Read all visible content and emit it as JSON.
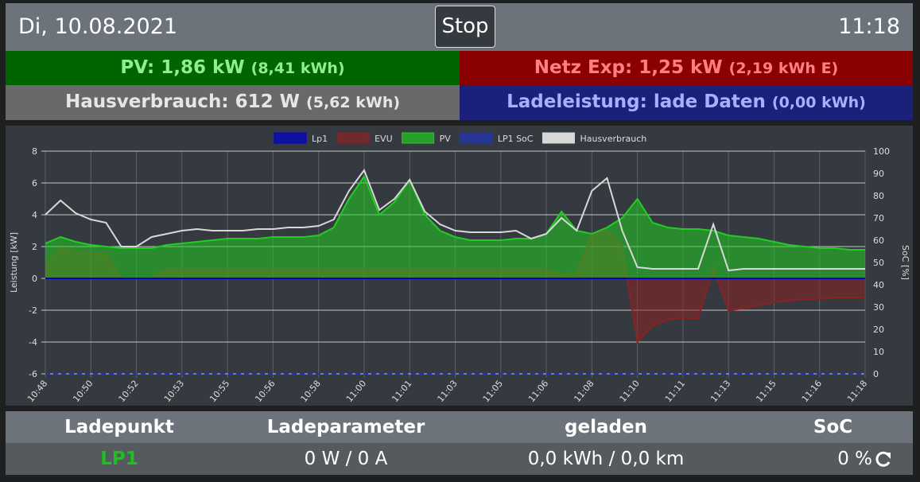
{
  "header": {
    "date": "Di, 10.08.2021",
    "button": "Stop",
    "time": "11:18"
  },
  "status": {
    "pv": {
      "label": "PV: 1,86 kW",
      "detail": "(8,41 kWh)"
    },
    "grid": {
      "label": "Netz Exp: 1,25 kW",
      "detail": "(2,19 kWh E)"
    },
    "house": {
      "label": "Hausverbrauch: 612 W",
      "detail": "(5,62 kWh)"
    },
    "charge": {
      "label": "Ladeleistung: lade Daten",
      "detail": "(0,00 kWh)"
    }
  },
  "chart_data": {
    "type": "line",
    "ylabel": "Leistung [kW]",
    "y2label": "SoC [%]",
    "legend": "top",
    "grid": true,
    "ylim": [
      -6,
      8
    ],
    "yticks": [
      -6,
      -4,
      -2,
      0,
      2,
      4,
      6,
      8
    ],
    "y2lim": [
      0,
      100
    ],
    "y2ticks": [
      0,
      10,
      20,
      30,
      40,
      50,
      60,
      70,
      80,
      90,
      100
    ],
    "categories": [
      "10:48",
      null,
      null,
      "10:50",
      null,
      null,
      "10:52",
      null,
      null,
      "10:53",
      null,
      null,
      "10:55",
      null,
      null,
      "10:56",
      null,
      null,
      "10:58",
      null,
      null,
      "11:00",
      null,
      null,
      "11:01",
      null,
      null,
      "11:03",
      null,
      null,
      "11:05",
      null,
      null,
      "11:06",
      null,
      null,
      "11:08",
      null,
      null,
      "11:10",
      null,
      null,
      "11:11",
      null,
      null,
      "11:13",
      null,
      null,
      "11:15",
      null,
      null,
      "11:16",
      null,
      null,
      "11:18"
    ],
    "series": [
      {
        "name": "Lp1",
        "color": "#0000cc",
        "fill": true,
        "values": [
          0,
          0,
          0,
          0,
          0,
          0,
          0,
          0,
          0,
          0,
          0,
          0,
          0,
          0,
          0,
          0,
          0,
          0,
          0,
          0,
          0,
          0,
          0,
          0,
          0,
          0,
          0,
          0,
          0,
          0,
          0,
          0,
          0,
          0,
          0,
          0,
          0,
          0,
          0,
          0,
          0,
          0,
          0,
          0,
          0,
          0,
          0,
          0,
          0,
          0,
          0,
          0,
          0,
          0,
          0
        ]
      },
      {
        "name": "EVU",
        "color": "#8b2222",
        "fill": true,
        "values": [
          0.8,
          1.9,
          1.7,
          1.6,
          1.5,
          0,
          0,
          0,
          0.6,
          0.6,
          0.6,
          0.6,
          0.6,
          0.6,
          0.6,
          0.6,
          0.6,
          0.6,
          0.6,
          0.6,
          0.6,
          0.6,
          0.6,
          0.6,
          0.6,
          0.6,
          0.6,
          0.6,
          0.6,
          0.6,
          0.6,
          0.6,
          0.6,
          0.6,
          0.2,
          0.3,
          2.8,
          3.0,
          2.0,
          -4.0,
          -3.0,
          -2.6,
          -2.5,
          -2.5,
          0.6,
          -2.0,
          -1.9,
          -1.7,
          -1.5,
          -1.4,
          -1.3,
          -1.3,
          -1.2,
          -1.2,
          -1.2
        ]
      },
      {
        "name": "PV",
        "color": "#22cc22",
        "fill": true,
        "values": [
          2.2,
          2.6,
          2.3,
          2.1,
          2.0,
          1.9,
          1.9,
          1.9,
          2.1,
          2.2,
          2.3,
          2.4,
          2.5,
          2.5,
          2.5,
          2.6,
          2.6,
          2.6,
          2.7,
          3.2,
          5.0,
          6.4,
          4.0,
          4.8,
          6.2,
          4.0,
          3.0,
          2.6,
          2.4,
          2.4,
          2.4,
          2.5,
          2.5,
          2.8,
          4.2,
          3.0,
          2.8,
          3.2,
          3.8,
          5.0,
          3.5,
          3.2,
          3.1,
          3.1,
          3.0,
          2.7,
          2.6,
          2.5,
          2.3,
          2.1,
          2.0,
          1.9,
          1.9,
          1.8,
          1.8
        ]
      },
      {
        "name": "LP1 SoC",
        "color": "#2233bb",
        "fill": true,
        "dashed": true,
        "axis": "y2",
        "values": [
          0,
          0,
          0,
          0,
          0,
          0,
          0,
          0,
          0,
          0,
          0,
          0,
          0,
          0,
          0,
          0,
          0,
          0,
          0,
          0,
          0,
          0,
          0,
          0,
          0,
          0,
          0,
          0,
          0,
          0,
          0,
          0,
          0,
          0,
          0,
          0,
          0,
          0,
          0,
          0,
          0,
          0,
          0,
          0,
          0,
          0,
          0,
          0,
          0,
          0,
          0,
          0,
          0,
          0,
          0
        ]
      },
      {
        "name": "Hausverbrauch",
        "color": "#d8d8d8",
        "fill": false,
        "values": [
          4.0,
          4.9,
          4.1,
          3.7,
          3.5,
          2.0,
          2.0,
          2.6,
          2.8,
          3.0,
          3.1,
          3.0,
          3.0,
          3.0,
          3.1,
          3.1,
          3.2,
          3.2,
          3.3,
          3.7,
          5.5,
          6.8,
          4.3,
          5.0,
          6.2,
          4.2,
          3.4,
          3.0,
          2.9,
          2.9,
          2.9,
          3.0,
          2.5,
          2.8,
          3.8,
          3.0,
          5.5,
          6.3,
          3.0,
          0.7,
          0.6,
          0.6,
          0.6,
          0.6,
          3.4,
          0.5,
          0.6,
          0.6,
          0.6,
          0.6,
          0.6,
          0.6,
          0.6,
          0.6,
          0.6
        ]
      }
    ]
  },
  "table": {
    "headers": [
      "Ladepunkt",
      "Ladeparameter",
      "geladen",
      "SoC"
    ],
    "rows": [
      [
        "LP1",
        "0 W / 0 A",
        "0,0 kWh / 0,0 km",
        "0 %"
      ]
    ]
  }
}
